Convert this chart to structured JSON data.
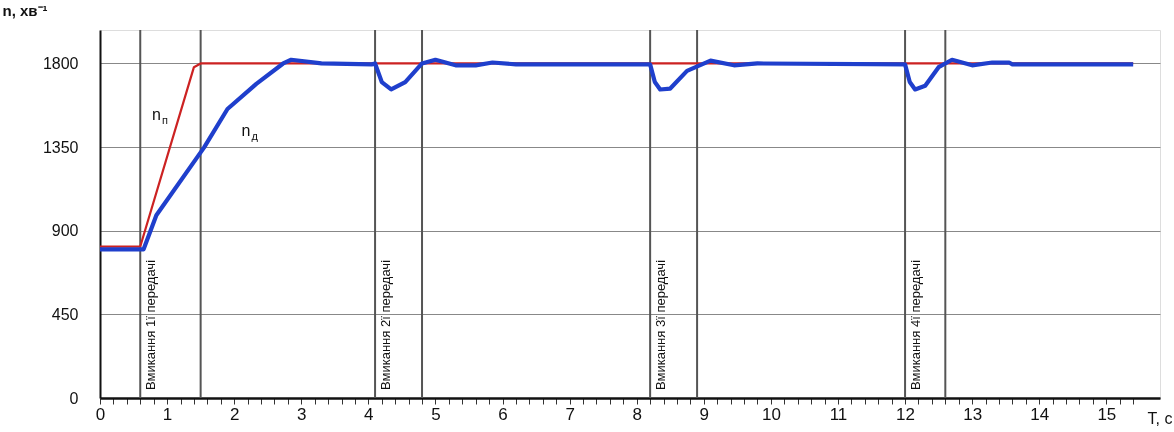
{
  "chart_data": {
    "type": "line",
    "xlabel": "T, с",
    "ylabel": "n, хв⁻¹",
    "xlim": [
      0,
      15.8
    ],
    "ylim": [
      0,
      1980
    ],
    "xticks": [
      0,
      {
        "value": 0.2,
        "label": null
      },
      {
        "value": 0.4,
        "label": null
      },
      {
        "value": 0.6,
        "label": null
      },
      {
        "value": 0.8,
        "label": null
      },
      1,
      {
        "value": 1.2,
        "label": null
      },
      {
        "value": 1.4,
        "label": null
      },
      {
        "value": 1.6,
        "label": null
      },
      {
        "value": 1.8,
        "label": null
      },
      2,
      {
        "value": 2.2,
        "label": null
      },
      {
        "value": 2.4,
        "label": null
      },
      {
        "value": 2.6,
        "label": null
      },
      {
        "value": 2.8,
        "label": null
      },
      3,
      {
        "value": 3.2,
        "label": null
      },
      {
        "value": 3.4,
        "label": null
      },
      {
        "value": 3.6,
        "label": null
      },
      {
        "value": 3.8,
        "label": null
      },
      4,
      {
        "value": 4.2,
        "label": null
      },
      {
        "value": 4.4,
        "label": null
      },
      {
        "value": 4.6,
        "label": null
      },
      {
        "value": 4.8,
        "label": null
      },
      5,
      {
        "value": 5.2,
        "label": null
      },
      {
        "value": 5.4,
        "label": null
      },
      {
        "value": 5.6,
        "label": null
      },
      {
        "value": 5.8,
        "label": null
      },
      6,
      {
        "value": 6.2,
        "label": null
      },
      {
        "value": 6.4,
        "label": null
      },
      {
        "value": 6.6,
        "label": null
      },
      {
        "value": 6.8,
        "label": null
      },
      7,
      {
        "value": 7.2,
        "label": null
      },
      {
        "value": 7.4,
        "label": null
      },
      {
        "value": 7.6,
        "label": null
      },
      {
        "value": 7.8,
        "label": null
      },
      8,
      {
        "value": 8.2,
        "label": null
      },
      {
        "value": 8.4,
        "label": null
      },
      {
        "value": 8.6,
        "label": null
      },
      {
        "value": 8.8,
        "label": null
      },
      9,
      {
        "value": 9.2,
        "label": null
      },
      {
        "value": 9.4,
        "label": null
      },
      {
        "value": 9.6,
        "label": null
      },
      {
        "value": 9.8,
        "label": null
      },
      10,
      {
        "value": 10.2,
        "label": null
      },
      {
        "value": 10.4,
        "label": null
      },
      {
        "value": 10.6,
        "label": null
      },
      {
        "value": 10.8,
        "label": null
      },
      11,
      {
        "value": 11.2,
        "label": null
      },
      {
        "value": 11.4,
        "label": null
      },
      {
        "value": 11.6,
        "label": null
      },
      {
        "value": 11.8,
        "label": null
      },
      12,
      {
        "value": 12.2,
        "label": null
      },
      {
        "value": 12.4,
        "label": null
      },
      {
        "value": 12.6,
        "label": null
      },
      {
        "value": 12.8,
        "label": null
      },
      13,
      {
        "value": 13.2,
        "label": null
      },
      {
        "value": 13.4,
        "label": null
      },
      {
        "value": 13.6,
        "label": null
      },
      {
        "value": 13.8,
        "label": null
      },
      14,
      {
        "value": 14.2,
        "label": null
      },
      {
        "value": 14.4,
        "label": null
      },
      {
        "value": 14.6,
        "label": null
      },
      {
        "value": 14.8,
        "label": null
      },
      15,
      {
        "value": 15.2,
        "label": null
      },
      {
        "value": 15.4,
        "label": null
      }
    ],
    "yticks": [
      0,
      450,
      900,
      1350,
      1800
    ],
    "grid": "y",
    "marker": "none",
    "line_style": "solid",
    "series": [
      {
        "name": "n$_{п}$",
        "color": "#cc2222",
        "x": [
          0,
          0.6,
          1.4,
          1.5,
          15.4
        ],
        "values": [
          815,
          815,
          1780,
          1800,
          1800
        ]
      },
      {
        "name": "n$_{д}$",
        "color": "#1f3fcc",
        "x": [
          0,
          0.6,
          0.65,
          0.84,
          1.55,
          1.9,
          2.33,
          2.73,
          2.85,
          3.3,
          4.05,
          4.1,
          4.2,
          4.34,
          4.55,
          4.8,
          5.0,
          5.3,
          5.6,
          5.85,
          6.2,
          8.2,
          8.27,
          8.35,
          8.5,
          8.75,
          9.1,
          9.45,
          9.8,
          12.0,
          12.07,
          12.15,
          12.3,
          12.5,
          12.7,
          13.0,
          13.3,
          13.55,
          13.6,
          15.4
        ],
        "values": [
          800,
          800,
          800,
          983,
          1347,
          1555,
          1690,
          1800,
          1820,
          1800,
          1795,
          1800,
          1700,
          1660,
          1700,
          1800,
          1820,
          1790,
          1790,
          1805,
          1795,
          1795,
          1700,
          1660,
          1665,
          1760,
          1815,
          1790,
          1800,
          1795,
          1700,
          1660,
          1680,
          1780,
          1820,
          1790,
          1805,
          1805,
          1795,
          1795
        ]
      }
    ],
    "ref_lines": [
      {
        "axis": "x",
        "value": 0.6,
        "label": "Вмикання 1ї передачі",
        "color": "#555555"
      },
      {
        "axis": "x",
        "value": 1.5,
        "color": "#555555"
      },
      {
        "axis": "x",
        "value": 4.1,
        "label": "Вмикання 2ї передачі",
        "color": "#555555"
      },
      {
        "axis": "x",
        "value": 4.8,
        "color": "#555555"
      },
      {
        "axis": "x",
        "value": 8.2,
        "label": "Вмикання 3ї передачі",
        "color": "#555555"
      },
      {
        "axis": "x",
        "value": 8.9,
        "color": "#555555"
      },
      {
        "axis": "x",
        "value": 12.0,
        "label": "Вмикання 4ї передачі",
        "color": "#555555"
      },
      {
        "axis": "x",
        "value": 12.6,
        "color": "#555555"
      }
    ]
  }
}
